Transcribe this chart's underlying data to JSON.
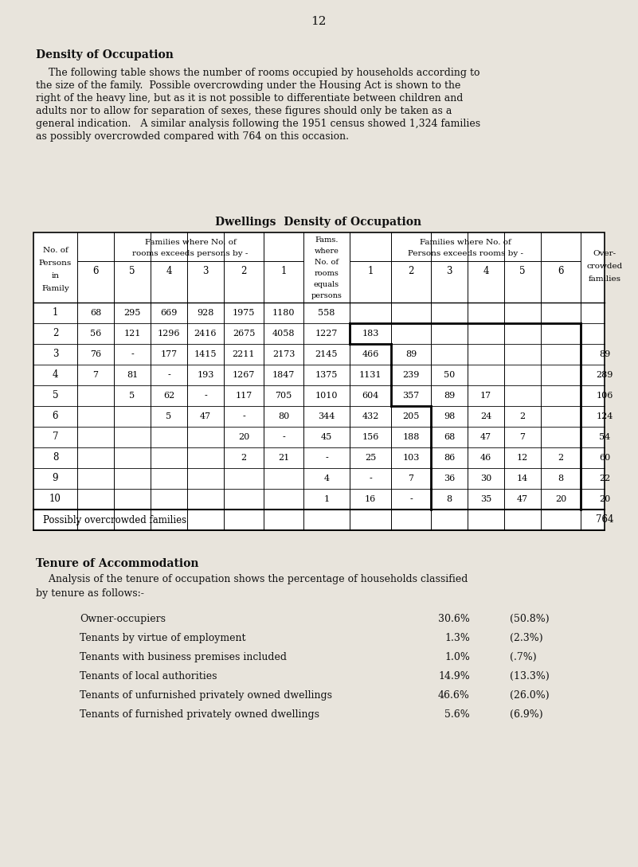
{
  "page_number": "12",
  "section1_title": "Density of Occupation",
  "section1_para_lines": [
    "    The following table shows the number of rooms occupied by households according to",
    "the size of the family.  Possible overcrowding under the Housing Act is shown to the",
    "right of the heavy line, but as it is not possible to differentiate between children and",
    "adults nor to allow for separation of sexes, these figures should only be taken as a",
    "general indication.   A similar analysis following the 1951 census showed 1,324 families",
    "as possibly overcrowded compared with 764 on this occasion."
  ],
  "table_title": "Dwellings  Density of Occupation",
  "table_data": [
    {
      "person": "1",
      "left": [
        "68",
        "295",
        "669",
        "928",
        "1975",
        "1180"
      ],
      "mid": "558",
      "right": [
        "",
        "",
        "",
        "",
        "",
        ""
      ],
      "overcrowded": ""
    },
    {
      "person": "2",
      "left": [
        "56",
        "121",
        "1296",
        "2416",
        "2675",
        "4058"
      ],
      "mid": "1227",
      "right": [
        "183",
        "",
        "",
        "",
        "",
        ""
      ],
      "overcrowded": ""
    },
    {
      "person": "3",
      "left": [
        "76",
        "-",
        "177",
        "1415",
        "2211",
        "2173"
      ],
      "mid": "2145",
      "right": [
        "466",
        "89",
        "",
        "",
        "",
        ""
      ],
      "overcrowded": "89"
    },
    {
      "person": "4",
      "left": [
        "7",
        "81",
        "-",
        "193",
        "1267",
        "1847"
      ],
      "mid": "1375",
      "right": [
        "1131",
        "239",
        "50",
        "",
        "",
        ""
      ],
      "overcrowded": "289"
    },
    {
      "person": "5",
      "left": [
        "",
        "5",
        "62",
        "-",
        "117",
        "705"
      ],
      "mid": "1010",
      "right": [
        "604",
        "357",
        "89",
        "17",
        "",
        ""
      ],
      "overcrowded": "106"
    },
    {
      "person": "6",
      "left": [
        "",
        "",
        "5",
        "47",
        "-",
        "80"
      ],
      "mid": "344",
      "right": [
        "432",
        "205",
        "98",
        "24",
        "2",
        ""
      ],
      "overcrowded": "124"
    },
    {
      "person": "7",
      "left": [
        "",
        "",
        "",
        "",
        "20",
        "-"
      ],
      "mid": "45",
      "right": [
        "156",
        "188",
        "68",
        "47",
        "7",
        ""
      ],
      "overcrowded": "54"
    },
    {
      "person": "8",
      "left": [
        "",
        "",
        "",
        "",
        "2",
        "21"
      ],
      "mid": "-",
      "right": [
        "25",
        "103",
        "86",
        "46",
        "12",
        "2"
      ],
      "overcrowded": "60"
    },
    {
      "person": "9",
      "left": [
        "",
        "",
        "",
        "",
        "",
        ""
      ],
      "mid": "4",
      "right": [
        "-",
        "7",
        "36",
        "30",
        "14",
        "8"
      ],
      "overcrowded": "22"
    },
    {
      "person": "10",
      "left": [
        "",
        "",
        "",
        "",
        "",
        ""
      ],
      "mid": "1",
      "right": [
        "16",
        "-",
        "8",
        "35",
        "47",
        "20"
      ],
      "overcrowded": "20"
    }
  ],
  "possibly_overcrowded_label": "Possibly overcrowded families",
  "possibly_overcrowded_value": "764",
  "section2_title": "Tenure of Accommodation",
  "section2_para_lines": [
    "    Analysis of the tenure of occupation shows the percentage of households classified",
    "by tenure as follows:-"
  ],
  "tenure_items": [
    {
      "label": "Owner-occupiers",
      "pct": "30.6%",
      "prev": "(50.8%)"
    },
    {
      "label": "Tenants by virtue of employment",
      "pct": "1.3%",
      "prev": "(2.3%)"
    },
    {
      "label": "Tenants with business premises included",
      "pct": "1.0%",
      "prev": "(.7%)"
    },
    {
      "label": "Tenants of local authorities",
      "pct": "14.9%",
      "prev": "(13.3%)"
    },
    {
      "label": "Tenants of unfurnished privately owned dwellings",
      "pct": "46.6%",
      "prev": "(26.0%)"
    },
    {
      "label": "Tenants of furnished privately owned dwellings",
      "pct": "5.6%",
      "prev": "(6.9%)"
    }
  ],
  "bg_color": "#e8e4dc"
}
